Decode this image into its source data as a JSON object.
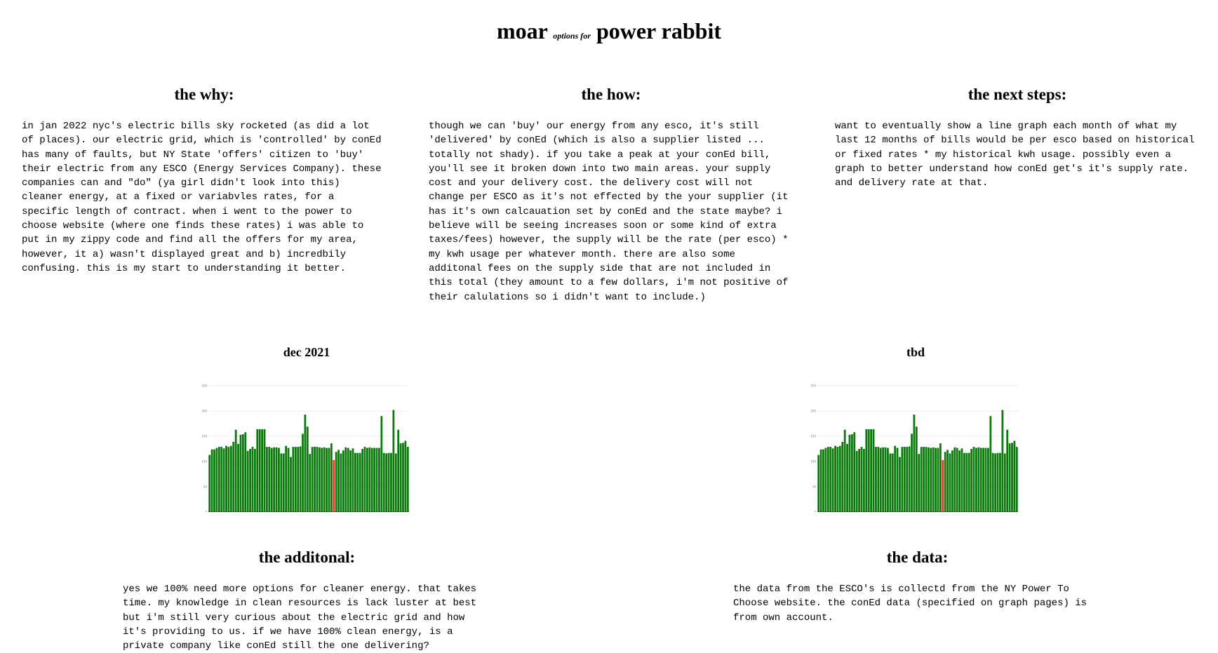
{
  "page": {
    "title_main_1": "moar",
    "title_small": "options for",
    "title_main_2": "power rabbit"
  },
  "sections": {
    "why": {
      "heading": "the why:",
      "text": "in jan 2022 nyc's electric bills sky rocketed (as did a lot of places). our electric grid, which is 'controlled' by conEd has many of faults, but NY State 'offers' citizen to 'buy' their electric from any ESCO (Energy Services Company). these companies can and \"do\" (ya girl didn't look into this) cleaner energy, at a fixed or variabvles rates, for a specific length of contract. when i went to the power to choose website (where one finds these rates) i was able to put in my zippy code and find all the offers for my area, however, it a) wasn't displayed great and b) incredbily confusing. this is my start to understanding it better."
    },
    "how": {
      "heading": "the how:",
      "text": "though we can 'buy' our energy from any esco, it's still 'delivered' by conEd (which is also a supplier listed ... totally not shady). if you take a peak at your conEd bill, you'll see it broken down into two main areas. your supply cost and your delivery cost. the delivery cost will not change per ESCO as it's not effected by the your supplier (it has it's own calcauation set by conEd and the state maybe? i believe will be seeing increases soon or some kind of extra taxes/fees) however, the supply will be the rate (per esco) * my kwh usage per whatever month. there are also some additonal fees on the supply side that are not included in this total (they amount to a few dollars, i'm not positive of their calulations so i didn't want to include.)"
    },
    "next": {
      "heading": "the next steps:",
      "text": "want to eventually show a line graph each month of what my last 12 months of bills would be per esco based on historical or fixed rates * my historical kwh usage. possibly even a graph to better understand how conEd get's it's supply rate. and delivery rate at that."
    },
    "additional": {
      "heading": "the additonal:",
      "text": "yes we 100% need more options for cleaner energy. that takes time. my knowledge in clean resources is lack luster at best but i'm still very curious about the electric grid and how it's providing to us. if we have 100% clean energy, is a private company like conEd still the one delivering?"
    },
    "data": {
      "heading": "the data:",
      "text": "the data from the ESCO's is collectd from the NY Power To Choose website. the conEd data (specified on graph pages) is from own account."
    }
  },
  "charts": {
    "left_label": "dec 2021",
    "right_label": "tbd",
    "bar_color": "#0a7a0a",
    "highlight_color": "#e53a2a"
  },
  "chart_data": [
    {
      "type": "bar",
      "ylim": [
        0,
        250
      ],
      "ticks": [
        "0",
        "50",
        "100",
        "150",
        "200",
        "250"
      ],
      "highlight_index": 52,
      "values": [
        113,
        124,
        124,
        127,
        129,
        129,
        126,
        131,
        129,
        131,
        139,
        163,
        135,
        153,
        154,
        158,
        121,
        125,
        129,
        125,
        164,
        164,
        164,
        164,
        129,
        129,
        127,
        128,
        128,
        127,
        116,
        116,
        131,
        127,
        109,
        129,
        129,
        129,
        130,
        155,
        193,
        169,
        115,
        129,
        129,
        129,
        128,
        127,
        128,
        127,
        127,
        136,
        103,
        119,
        123,
        116,
        122,
        128,
        127,
        122,
        126,
        117,
        117,
        117,
        125,
        129,
        127,
        128,
        127,
        127,
        127,
        127,
        190,
        117,
        116,
        117,
        117,
        202,
        116,
        163,
        136,
        137,
        141,
        129
      ]
    },
    {
      "type": "bar",
      "ylim": [
        0,
        250
      ],
      "ticks": [
        "0",
        "50",
        "100",
        "150",
        "200",
        "250"
      ],
      "highlight_index": 52,
      "values": [
        113,
        124,
        124,
        127,
        129,
        129,
        126,
        131,
        129,
        131,
        139,
        163,
        135,
        153,
        154,
        158,
        121,
        125,
        129,
        125,
        164,
        164,
        164,
        164,
        129,
        129,
        127,
        128,
        128,
        127,
        116,
        116,
        131,
        127,
        109,
        129,
        129,
        129,
        130,
        155,
        193,
        169,
        115,
        129,
        129,
        129,
        128,
        127,
        128,
        127,
        127,
        136,
        103,
        119,
        123,
        116,
        122,
        128,
        127,
        122,
        126,
        117,
        117,
        117,
        125,
        129,
        127,
        128,
        127,
        127,
        127,
        127,
        190,
        117,
        116,
        117,
        117,
        202,
        116,
        163,
        136,
        137,
        141,
        129
      ]
    }
  ]
}
